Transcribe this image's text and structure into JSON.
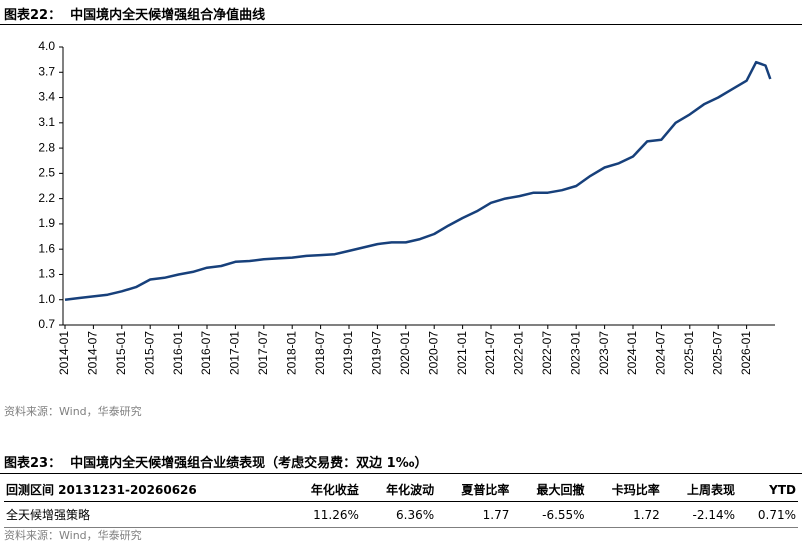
{
  "chart_data": {
    "type": "line",
    "label": "图表22：",
    "title": "中国境内全天候增强组合净值曲线",
    "x": [
      "2014-01",
      "2014-04",
      "2014-07",
      "2014-10",
      "2015-01",
      "2015-04",
      "2015-07",
      "2015-10",
      "2016-01",
      "2016-04",
      "2016-07",
      "2016-10",
      "2017-01",
      "2017-04",
      "2017-07",
      "2017-10",
      "2018-01",
      "2018-04",
      "2018-07",
      "2018-10",
      "2019-01",
      "2019-04",
      "2019-07",
      "2019-10",
      "2020-01",
      "2020-04",
      "2020-07",
      "2020-10",
      "2021-01",
      "2021-04",
      "2021-07",
      "2021-10",
      "2022-01",
      "2022-04",
      "2022-07",
      "2022-10",
      "2023-01",
      "2023-04",
      "2023-07",
      "2023-10",
      "2024-01",
      "2024-04",
      "2024-07",
      "2024-10",
      "2025-01",
      "2025-04",
      "2025-07",
      "2025-10",
      "2026-01",
      "2026-03",
      "2026-05",
      "2026-06"
    ],
    "values": [
      1.0,
      1.02,
      1.04,
      1.06,
      1.1,
      1.15,
      1.24,
      1.26,
      1.3,
      1.33,
      1.38,
      1.4,
      1.45,
      1.46,
      1.48,
      1.49,
      1.5,
      1.52,
      1.53,
      1.54,
      1.58,
      1.62,
      1.66,
      1.68,
      1.68,
      1.72,
      1.78,
      1.88,
      1.97,
      2.05,
      2.15,
      2.2,
      2.23,
      2.27,
      2.27,
      2.3,
      2.35,
      2.47,
      2.57,
      2.62,
      2.7,
      2.88,
      2.9,
      3.1,
      3.2,
      3.32,
      3.4,
      3.5,
      3.6,
      3.82,
      3.78,
      3.62
    ],
    "color": "#17407b",
    "xlim": [
      "2014-01",
      "2026-07"
    ],
    "xticks": [
      "2014-01",
      "2014-07",
      "2015-01",
      "2015-07",
      "2016-01",
      "2016-07",
      "2017-01",
      "2017-07",
      "2018-01",
      "2018-07",
      "2019-01",
      "2019-07",
      "2020-01",
      "2020-07",
      "2021-01",
      "2021-07",
      "2022-01",
      "2022-07",
      "2023-01",
      "2023-07",
      "2024-01",
      "2024-07",
      "2025-01",
      "2025-07",
      "2026-01"
    ],
    "ylim": [
      0.7,
      4.0
    ],
    "yticks": [
      0.7,
      {
        "value": 1,
        "label": "1.0"
      },
      1.3,
      1.6,
      1.9,
      2.2,
      2.5,
      2.8,
      3.1,
      3.4,
      3.7,
      {
        "value": 4,
        "label": "4.0"
      }
    ],
    "source": "资料来源：Wind，华泰研究"
  },
  "table": {
    "label": "图表23：",
    "title": "中国境内全天候增强组合业绩表现（考虑交易费：双边 1‰）",
    "header": [
      "回测区间 20131231-20260626",
      "年化收益",
      "年化波动",
      "夏普比率",
      "最大回撤",
      "卡玛比率",
      "上周表现",
      "YTD"
    ],
    "rows": [
      [
        "全天候增强策略",
        "11.26%",
        "6.36%",
        "1.77",
        "-6.55%",
        "1.72",
        "-2.14%",
        "0.71%"
      ]
    ],
    "source": "资料来源：Wind，华泰研究"
  }
}
